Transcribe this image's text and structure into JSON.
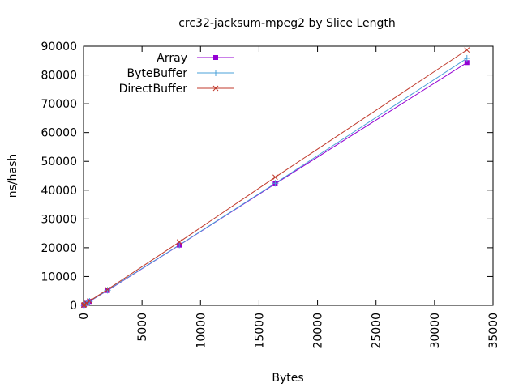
{
  "chart_data": {
    "type": "line",
    "title": "crc32-jacksum-mpeg2 by Slice Length",
    "xlabel": "Bytes",
    "ylabel": "ns/hash",
    "xlim": [
      0,
      35000
    ],
    "ylim": [
      0,
      90000
    ],
    "x_ticks": [
      0,
      5000,
      10000,
      15000,
      20000,
      25000,
      30000,
      35000
    ],
    "y_ticks": [
      0,
      10000,
      20000,
      30000,
      40000,
      50000,
      60000,
      70000,
      80000,
      90000
    ],
    "grid": false,
    "legend_position": "top-left",
    "series": [
      {
        "name": "Array",
        "color": "#9400d3",
        "marker": "filled-square",
        "x": [
          16,
          64,
          256,
          512,
          2048,
          8192,
          16384,
          32768
        ],
        "y": [
          50,
          180,
          700,
          1350,
          5150,
          20900,
          42200,
          84300
        ]
      },
      {
        "name": "ByteBuffer",
        "color": "#4aa0d8",
        "marker": "plus",
        "x": [
          16,
          64,
          256,
          512,
          2048,
          8192,
          16384,
          32768
        ],
        "y": [
          60,
          200,
          720,
          1400,
          5250,
          20950,
          42400,
          85800
        ]
      },
      {
        "name": "DirectBuffer",
        "color": "#c0392b",
        "marker": "cross",
        "x": [
          16,
          64,
          256,
          512,
          2048,
          8192,
          16384,
          32768
        ],
        "y": [
          70,
          230,
          760,
          1500,
          5500,
          22000,
          44500,
          88700
        ]
      }
    ]
  }
}
